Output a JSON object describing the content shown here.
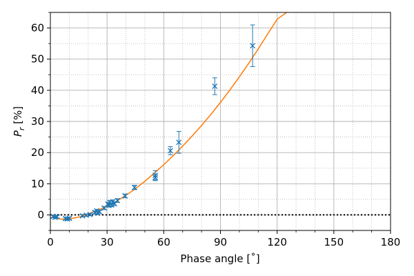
{
  "chart_data": {
    "type": "scatter",
    "xlabel": "Phase angle [˚]",
    "ylabel_main": "P",
    "ylabel_sub": "r",
    "ylabel_unit": " [%]",
    "xlim": [
      0,
      180
    ],
    "ylim": [
      -5,
      65
    ],
    "x_major_ticks": [
      0,
      30,
      60,
      90,
      120,
      150,
      180
    ],
    "x_tick_labels": [
      "0",
      "30",
      "60",
      "90",
      "120",
      "150",
      "180"
    ],
    "x_minor_ticks": [
      10,
      20,
      40,
      50,
      70,
      80,
      100,
      110,
      130,
      140,
      160,
      170
    ],
    "y_major_ticks": [
      0,
      10,
      20,
      30,
      40,
      50,
      60
    ],
    "y_tick_labels": [
      "0",
      "10",
      "20",
      "30",
      "40",
      "50",
      "60"
    ],
    "y_minor_ticks": [
      -5,
      5,
      15,
      25,
      35,
      45,
      55,
      65
    ],
    "grid": "major solid, minor dotted",
    "zero_line": {
      "y": 0,
      "style": "dotted",
      "color": "#000000"
    },
    "colors": {
      "points": "#1f77b4",
      "fit": "#ff7f0e"
    },
    "series": [
      {
        "kind": "observations",
        "marker": "x",
        "points": [
          {
            "x": 1.5,
            "y": -0.5,
            "err": 0.4
          },
          {
            "x": 2.5,
            "y": -0.8,
            "err": 0.4
          },
          {
            "x": 3.5,
            "y": -0.6,
            "err": 0.4
          },
          {
            "x": 8.0,
            "y": -1.2,
            "err": 0.4
          },
          {
            "x": 9.0,
            "y": -1.3,
            "err": 0.4
          },
          {
            "x": 10.0,
            "y": -1.1,
            "err": 0.4
          },
          {
            "x": 17.0,
            "y": -0.3,
            "err": 0.4
          },
          {
            "x": 19.0,
            "y": -0.1,
            "err": 0.4
          },
          {
            "x": 21.0,
            "y": 0.1,
            "err": 0.4
          },
          {
            "x": 23.5,
            "y": 0.8,
            "err": 0.5
          },
          {
            "x": 24.5,
            "y": 1.3,
            "err": 0.5
          },
          {
            "x": 25.0,
            "y": 0.6,
            "err": 0.5
          },
          {
            "x": 26.0,
            "y": 1.0,
            "err": 0.5
          },
          {
            "x": 28.5,
            "y": 2.2,
            "err": 0.5
          },
          {
            "x": 30.5,
            "y": 3.5,
            "err": 0.5
          },
          {
            "x": 31.0,
            "y": 3.0,
            "err": 0.5
          },
          {
            "x": 31.5,
            "y": 4.0,
            "err": 0.6
          },
          {
            "x": 32.5,
            "y": 3.2,
            "err": 0.6
          },
          {
            "x": 33.0,
            "y": 4.2,
            "err": 0.6
          },
          {
            "x": 34.0,
            "y": 3.6,
            "err": 0.6
          },
          {
            "x": 35.5,
            "y": 4.6,
            "err": 0.6
          },
          {
            "x": 39.5,
            "y": 6.1,
            "err": 0.6
          },
          {
            "x": 44.5,
            "y": 8.8,
            "err": 0.7
          },
          {
            "x": 55.5,
            "y": 12.0,
            "err": 1.0
          },
          {
            "x": 55.5,
            "y": 12.7,
            "err": 1.5
          },
          {
            "x": 63.5,
            "y": 20.6,
            "err": 1.3
          },
          {
            "x": 68.0,
            "y": 23.3,
            "err": 3.5
          },
          {
            "x": 87.0,
            "y": 41.3,
            "err": 2.7
          },
          {
            "x": 107.0,
            "y": 54.3,
            "err": 6.7
          }
        ]
      },
      {
        "kind": "fit",
        "x": [
          0,
          3,
          6,
          10,
          15,
          20,
          25,
          30,
          35,
          40,
          45,
          50,
          55,
          60,
          65,
          70,
          75,
          80,
          85,
          90,
          95,
          100,
          105,
          110,
          115,
          120,
          125
        ],
        "y": [
          0.0,
          -1.0,
          -1.4,
          -1.3,
          -0.7,
          0.3,
          1.5,
          2.8,
          4.4,
          6.3,
          8.4,
          10.8,
          13.4,
          16.1,
          19.0,
          22.1,
          25.3,
          28.7,
          32.3,
          36.1,
          40.1,
          44.3,
          48.7,
          53.3,
          58.1,
          62.8,
          65.0
        ]
      }
    ]
  }
}
